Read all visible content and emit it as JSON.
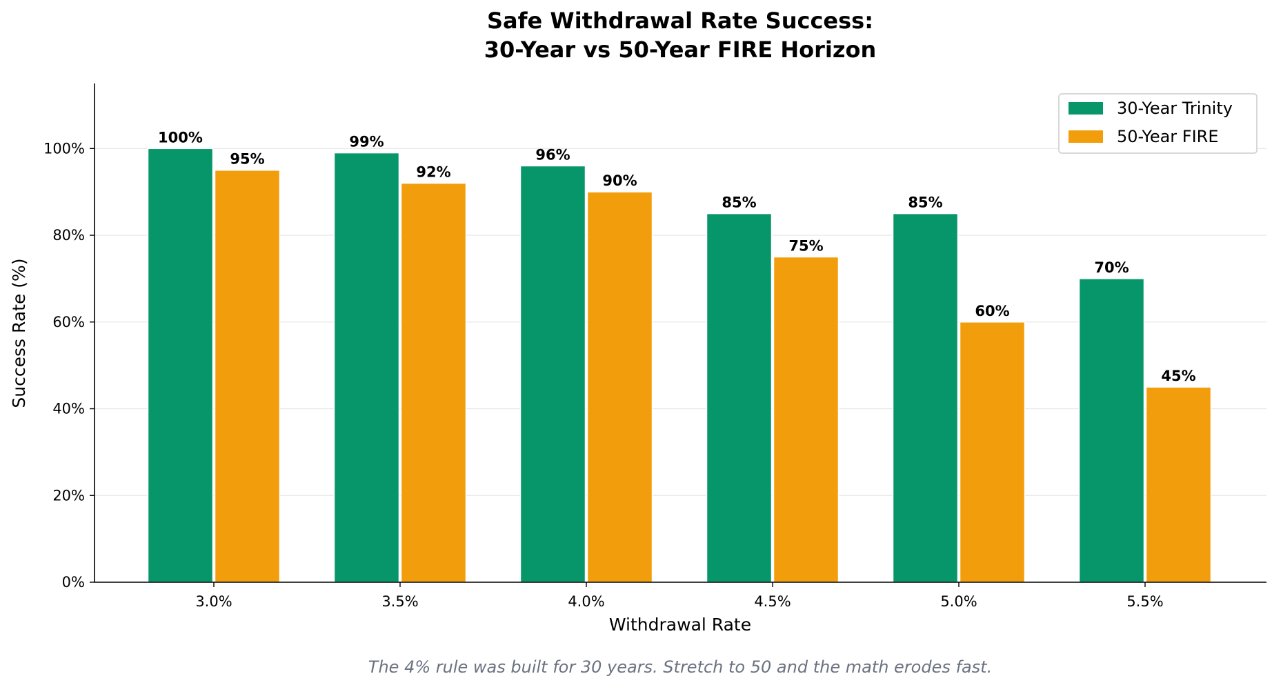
{
  "chart_data": {
    "type": "bar",
    "title_lines": [
      "Safe Withdrawal Rate Success:",
      "30-Year vs 50-Year FIRE Horizon"
    ],
    "xlabel": "Withdrawal Rate",
    "ylabel": "Success Rate (%)",
    "categories": [
      "3.0%",
      "3.5%",
      "4.0%",
      "4.5%",
      "5.0%",
      "5.5%"
    ],
    "series": [
      {
        "name": "30-Year Trinity",
        "color": "#069669",
        "values": [
          100,
          99,
          96,
          85,
          85,
          70
        ],
        "labels": [
          "100%",
          "99%",
          "96%",
          "85%",
          "85%",
          "70%"
        ]
      },
      {
        "name": "50-Year FIRE",
        "color": "#f29e0c",
        "values": [
          95,
          92,
          90,
          75,
          60,
          45
        ],
        "labels": [
          "95%",
          "92%",
          "90%",
          "75%",
          "60%",
          "45%"
        ]
      }
    ],
    "ylim": [
      0,
      115
    ],
    "yticks": [
      0,
      20,
      40,
      60,
      80,
      100
    ],
    "ytick_labels": [
      "0%",
      "20%",
      "40%",
      "60%",
      "80%",
      "100%"
    ],
    "grid": "horizontal",
    "legend_position": "top-right",
    "caption": "The 4% rule was built for 30 years. Stretch to 50 and the math erodes fast."
  }
}
